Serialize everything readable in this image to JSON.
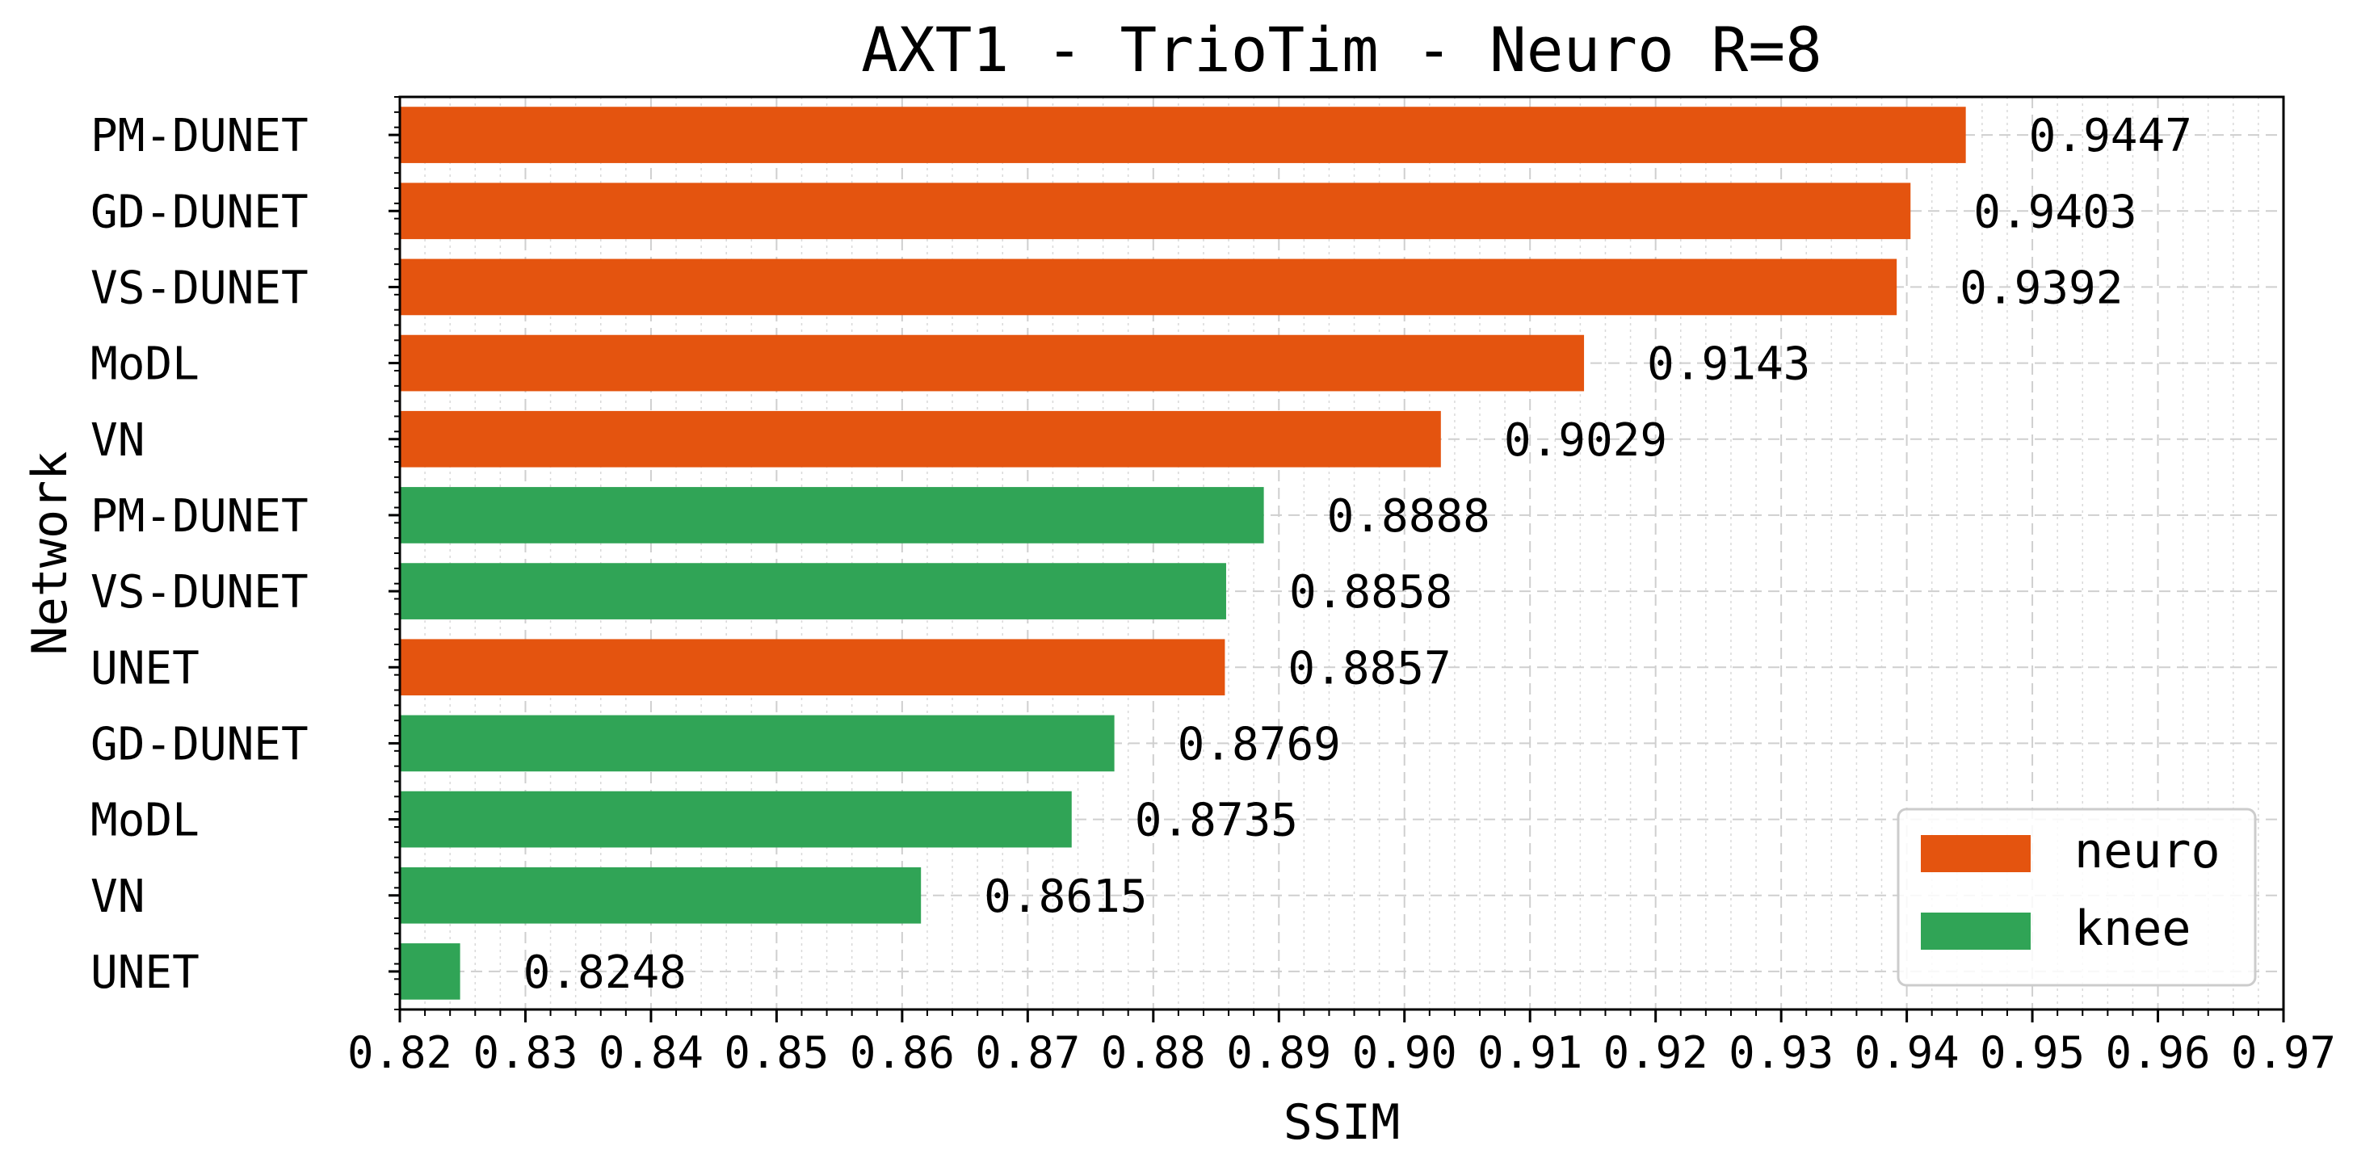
{
  "chart_data": {
    "type": "bar",
    "orientation": "horizontal",
    "title": "AXT1 - TrioTim - Neuro R=8",
    "xlabel": "SSIM",
    "ylabel": "Network",
    "xlim": [
      0.82,
      0.97
    ],
    "xticks": [
      "0.82",
      "0.83",
      "0.84",
      "0.85",
      "0.86",
      "0.87",
      "0.88",
      "0.89",
      "0.90",
      "0.91",
      "0.92",
      "0.93",
      "0.94",
      "0.95",
      "0.96",
      "0.97"
    ],
    "grid": true,
    "legend_position": "lower-right",
    "series_legend": [
      {
        "name": "neuro",
        "color": "#e4540f"
      },
      {
        "name": "knee",
        "color": "#30a456"
      }
    ],
    "bars": [
      {
        "category": "PM-DUNET",
        "value": 0.9447,
        "label": "0.9447",
        "series": "neuro"
      },
      {
        "category": "GD-DUNET",
        "value": 0.9403,
        "label": "0.9403",
        "series": "neuro"
      },
      {
        "category": "VS-DUNET",
        "value": 0.9392,
        "label": "0.9392",
        "series": "neuro"
      },
      {
        "category": "MoDL",
        "value": 0.9143,
        "label": "0.9143",
        "series": "neuro"
      },
      {
        "category": "VN",
        "value": 0.9029,
        "label": "0.9029",
        "series": "neuro"
      },
      {
        "category": "PM-DUNET",
        "value": 0.8888,
        "label": "0.8888",
        "series": "knee"
      },
      {
        "category": "VS-DUNET",
        "value": 0.8858,
        "label": "0.8858",
        "series": "knee"
      },
      {
        "category": "UNET",
        "value": 0.8857,
        "label": "0.8857",
        "series": "neuro"
      },
      {
        "category": "GD-DUNET",
        "value": 0.8769,
        "label": "0.8769",
        "series": "knee"
      },
      {
        "category": "MoDL",
        "value": 0.8735,
        "label": "0.8735",
        "series": "knee"
      },
      {
        "category": "VN",
        "value": 0.8615,
        "label": "0.8615",
        "series": "knee"
      },
      {
        "category": "UNET",
        "value": 0.8248,
        "label": "0.8248",
        "series": "knee"
      }
    ]
  }
}
